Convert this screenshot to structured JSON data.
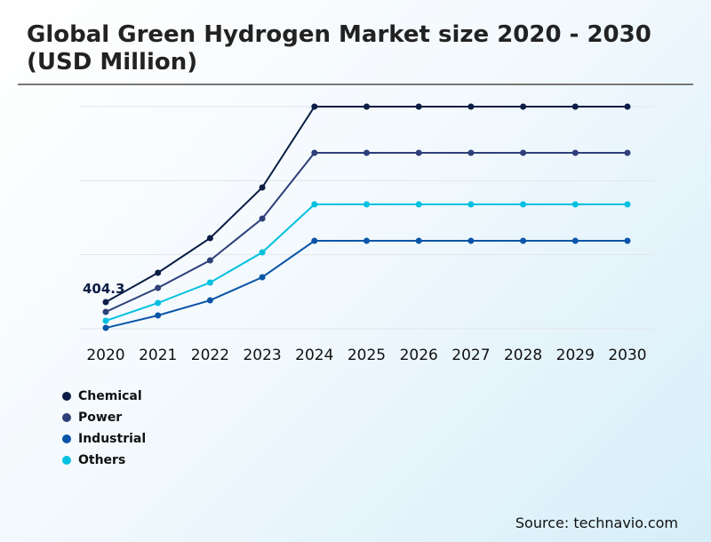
{
  "title": "Global Green Hydrogen Market size 2020 - 2030 (USD Million)",
  "source": "Source: technavio.com",
  "chart_data": {
    "type": "line",
    "title": "Global Green Hydrogen Market size 2020 - 2030 (USD Million)",
    "categories": [
      "2020",
      "2021",
      "2022",
      "2023",
      "2024",
      "2025",
      "2026",
      "2027",
      "2028",
      "2029",
      "2030"
    ],
    "ylim": [
      0,
      3370
    ],
    "grid": true,
    "legend_position": "bottom-left",
    "annotation": {
      "series": "Chemical",
      "category": "2020",
      "label": "404.3"
    },
    "series": [
      {
        "name": "Chemical",
        "color": "#0b1d45",
        "values": [
          404.3,
          849,
          1375,
          2143,
          3370,
          3370,
          3370,
          3370,
          3370,
          3370,
          3370
        ]
      },
      {
        "name": "Power",
        "color": "#2e3f7a",
        "values": [
          256,
          620,
          1038,
          1671,
          2669,
          2669,
          2669,
          2669,
          2669,
          2669,
          2669
        ]
      },
      {
        "name": "Industrial",
        "color": "#0a55a8",
        "values": [
          13,
          202,
          431,
          782,
          1334,
          1334,
          1334,
          1334,
          1334,
          1334,
          1334
        ]
      },
      {
        "name": "Others",
        "color": "#00c0e0",
        "values": [
          121,
          391,
          701,
          1159,
          1887,
          1887,
          1887,
          1887,
          1887,
          1887,
          1887
        ]
      }
    ]
  }
}
